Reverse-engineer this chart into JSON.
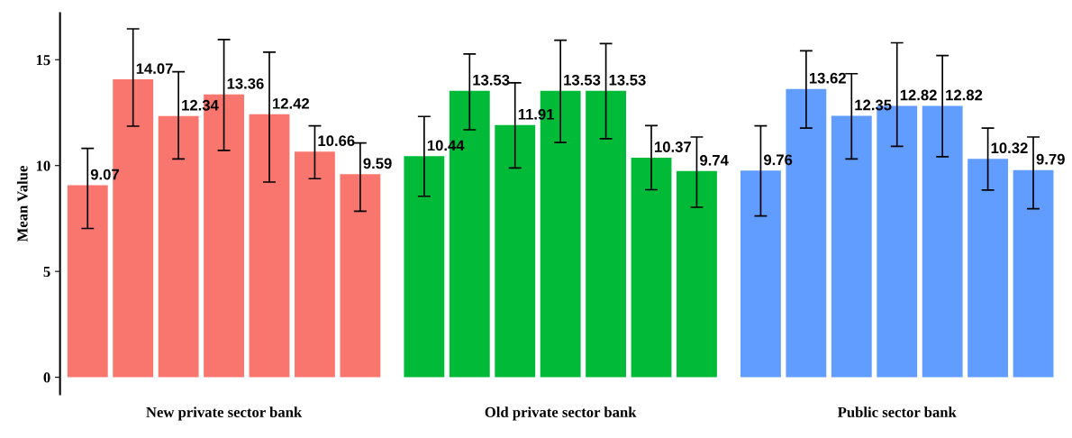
{
  "chart_data": {
    "type": "bar",
    "ylabel": "Mean Value",
    "categories": [
      "New private sector bank",
      "Old private sector bank",
      "Public sector bank"
    ],
    "series": [
      {
        "colors": [
          "#f8766d",
          "#00ba38",
          "#619cff"
        ],
        "values": [
          9.07,
          10.44,
          9.76
        ],
        "errors": [
          [
            7.03,
            10.81
          ],
          [
            8.55,
            12.32
          ],
          [
            7.62,
            11.88
          ]
        ]
      },
      {
        "colors": [
          "#f8766d",
          "#00ba38",
          "#619cff"
        ],
        "values": [
          14.07,
          13.53,
          13.62
        ],
        "errors": [
          [
            11.86,
            16.46
          ],
          [
            11.69,
            15.27
          ],
          [
            11.77,
            15.42
          ]
        ]
      },
      {
        "colors": [
          "#f8766d",
          "#00ba38",
          "#619cff"
        ],
        "values": [
          12.34,
          11.91,
          12.35
        ],
        "errors": [
          [
            10.31,
            14.43
          ],
          [
            9.89,
            13.91
          ],
          [
            10.31,
            14.34
          ]
        ]
      },
      {
        "colors": [
          "#f8766d",
          "#00ba38",
          "#619cff"
        ],
        "values": [
          13.36,
          13.53,
          12.82
        ],
        "errors": [
          [
            10.72,
            15.95
          ],
          [
            11.09,
            15.92
          ],
          [
            10.91,
            15.8
          ]
        ]
      },
      {
        "colors": [
          "#f8766d",
          "#00ba38",
          "#619cff"
        ],
        "values": [
          12.42,
          13.53,
          12.82
        ],
        "errors": [
          [
            9.22,
            15.36
          ],
          [
            11.27,
            15.76
          ],
          [
            10.42,
            15.2
          ]
        ]
      },
      {
        "colors": [
          "#f8766d",
          "#00ba38",
          "#619cff"
        ],
        "values": [
          10.66,
          10.37,
          10.32
        ],
        "errors": [
          [
            9.38,
            11.88
          ],
          [
            8.86,
            11.89
          ],
          [
            8.84,
            11.77
          ]
        ]
      },
      {
        "colors": [
          "#f8766d",
          "#00ba38",
          "#619cff"
        ],
        "values": [
          9.59,
          9.74,
          9.79
        ],
        "errors": [
          [
            7.84,
            11.07
          ],
          [
            8.03,
            11.35
          ],
          [
            7.96,
            11.35
          ]
        ]
      }
    ],
    "ylim": [
      -0.8,
      17.2
    ],
    "yticks": [
      0,
      5,
      10,
      15
    ],
    "data_labels": true,
    "grid": false,
    "legend": false
  }
}
